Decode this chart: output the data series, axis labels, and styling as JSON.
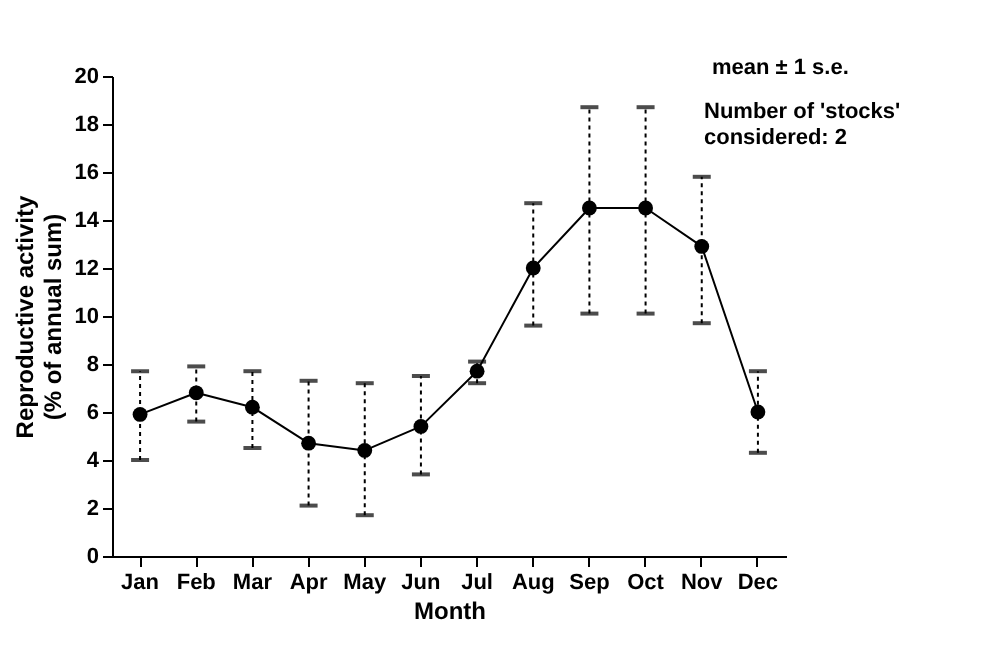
{
  "chart_data": {
    "type": "line",
    "xlabel": "Month",
    "ylabel": "Reproductive activity\n(% of annual sum)",
    "categories": [
      "Jan",
      "Feb",
      "Mar",
      "Apr",
      "May",
      "Jun",
      "Jul",
      "Aug",
      "Sep",
      "Oct",
      "Nov",
      "Dec"
    ],
    "series": [
      {
        "color": "#000000",
        "values": [
          5.9,
          6.8,
          6.2,
          4.7,
          4.4,
          5.4,
          7.7,
          12.0,
          14.5,
          14.5,
          12.9,
          6.0
        ],
        "errors": [
          [
            4.0,
            7.7
          ],
          [
            5.6,
            7.9
          ],
          [
            4.5,
            7.7
          ],
          [
            2.1,
            7.3
          ],
          [
            1.7,
            7.2
          ],
          [
            3.4,
            7.5
          ],
          [
            7.2,
            8.1
          ],
          [
            9.6,
            14.7
          ],
          [
            10.1,
            18.7
          ],
          [
            10.1,
            18.7
          ],
          [
            9.7,
            15.8
          ],
          [
            4.3,
            7.7
          ]
        ]
      }
    ],
    "ylim": [
      0,
      20
    ],
    "yticks": [
      0,
      2,
      4,
      6,
      8,
      10,
      12,
      14,
      16,
      18,
      20
    ],
    "grid": false,
    "marker": "circle",
    "line_style": "solid",
    "annotations": [
      "mean ± 1 s.e.",
      "Number of 'stocks'\nconsidered: 2"
    ]
  }
}
